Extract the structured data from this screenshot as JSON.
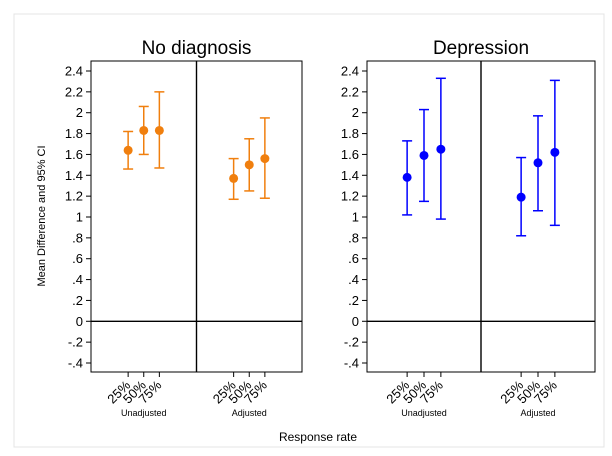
{
  "chart_data": {
    "type": "scatter",
    "subtype": "point-with-error-bars",
    "ylabel": "Mean Difference and 95% CI",
    "xlabel": "Response rate",
    "ylim": [
      -0.4,
      2.4
    ],
    "yticks": [
      -0.4,
      -0.2,
      0,
      0.2,
      0.4,
      0.6,
      0.8,
      1.0,
      1.2,
      1.4,
      1.6,
      1.8,
      2.0,
      2.2,
      2.4
    ],
    "ytick_labels": [
      "-.4",
      "-.2",
      "0",
      ".2",
      ".4",
      ".6",
      ".8",
      "1",
      "1.2",
      "1.4",
      "1.6",
      "1.8",
      "2",
      "2.2",
      "2.4"
    ],
    "reference_line_y": 0,
    "grid": false,
    "legend": "none",
    "panels": [
      {
        "title": "No diagnosis",
        "color": "#F07F0E",
        "groups": [
          {
            "label": "Unadjusted",
            "categories": [
              "25%",
              "50%",
              "75%"
            ],
            "values": [
              1.64,
              1.83,
              1.83
            ],
            "ci_low": [
              1.46,
              1.6,
              1.47
            ],
            "ci_high": [
              1.82,
              2.06,
              2.2
            ]
          },
          {
            "label": "Adjusted",
            "categories": [
              "25%",
              "50%",
              "75%"
            ],
            "values": [
              1.37,
              1.5,
              1.56
            ],
            "ci_low": [
              1.17,
              1.25,
              1.18
            ],
            "ci_high": [
              1.56,
              1.75,
              1.95
            ]
          }
        ]
      },
      {
        "title": "Depression",
        "color": "#0000FF",
        "groups": [
          {
            "label": "Unadjusted",
            "categories": [
              "25%",
              "50%",
              "75%"
            ],
            "values": [
              1.38,
              1.59,
              1.65
            ],
            "ci_low": [
              1.02,
              1.15,
              0.98
            ],
            "ci_high": [
              1.73,
              2.03,
              2.33
            ]
          },
          {
            "label": "Adjusted",
            "categories": [
              "25%",
              "50%",
              "75%"
            ],
            "values": [
              1.19,
              1.52,
              1.62
            ],
            "ci_low": [
              0.82,
              1.06,
              0.92
            ],
            "ci_high": [
              1.57,
              1.97,
              2.31
            ]
          }
        ]
      }
    ]
  }
}
